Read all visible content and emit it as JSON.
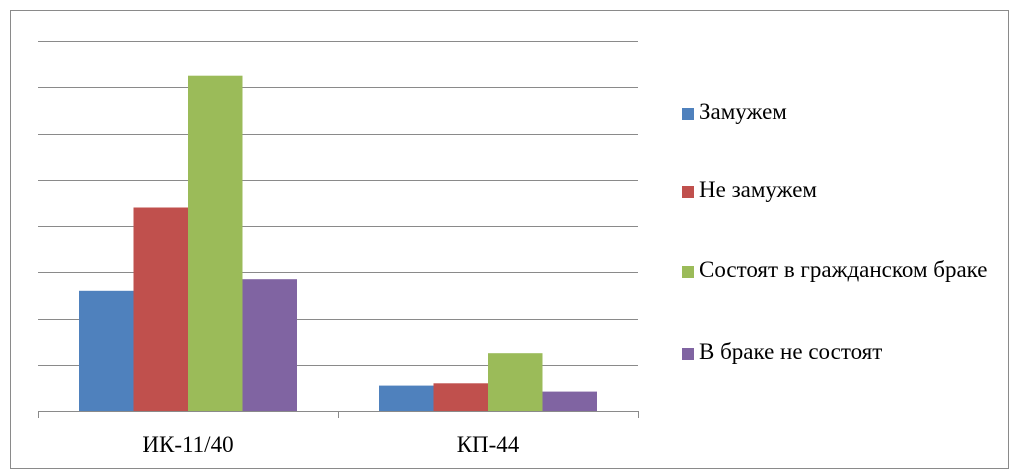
{
  "chart_data": {
    "type": "bar",
    "categories": [
      "ИК-11/40",
      "КП-44"
    ],
    "series": [
      {
        "name": "Замужем",
        "color": "#4F81BD",
        "values": [
          26,
          5.5
        ]
      },
      {
        "name": "Не замужем",
        "color": "#C0504D",
        "values": [
          44,
          6
        ]
      },
      {
        "name": "Состоят в гражданском браке",
        "color": "#9BBB59",
        "values": [
          72.5,
          12.5
        ]
      },
      {
        "name": "В браке не состоят",
        "color": "#8064A2",
        "values": [
          28.5,
          4.2
        ]
      }
    ],
    "ylim": [
      0,
      80
    ],
    "grid": true,
    "legend": "right",
    "title": "",
    "xlabel": "",
    "ylabel": ""
  }
}
